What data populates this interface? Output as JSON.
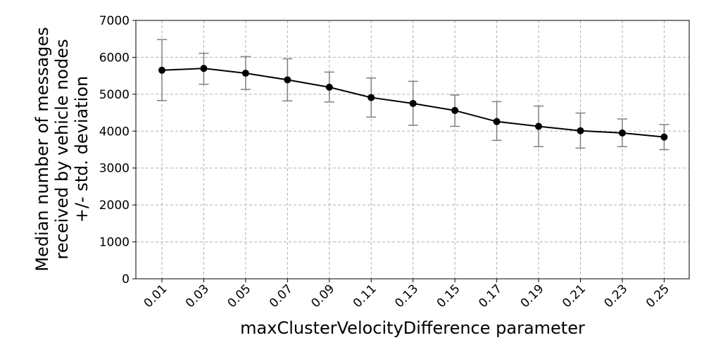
{
  "chart_data": {
    "type": "line",
    "title": "",
    "xlabel": "maxClusterVelocityDifference parameter",
    "ylabel_lines": [
      "Median number of messages",
      "received by vehicle nodes",
      "+/- std. deviation"
    ],
    "categories": [
      "0.01",
      "0.03",
      "0.05",
      "0.07",
      "0.09",
      "0.11",
      "0.13",
      "0.15",
      "0.17",
      "0.19",
      "0.21",
      "0.23",
      "0.25"
    ],
    "series": [
      {
        "values": [
          5650,
          5700,
          5570,
          5390,
          5190,
          4910,
          4750,
          4560,
          4260,
          4130,
          4010,
          3950,
          3840
        ],
        "error_lower": [
          4830,
          5270,
          5130,
          4820,
          4790,
          4380,
          4160,
          4130,
          3750,
          3580,
          3540,
          3580,
          3500
        ],
        "error_upper": [
          6480,
          6110,
          6020,
          5960,
          5600,
          5440,
          5350,
          4980,
          4800,
          4680,
          4490,
          4330,
          4180
        ],
        "color": "#000000",
        "error_color": "#808080"
      }
    ],
    "ylim": [
      0,
      7000
    ],
    "yticks": [
      0,
      1000,
      2000,
      3000,
      4000,
      5000,
      6000,
      7000
    ],
    "grid": true,
    "legend": false
  }
}
